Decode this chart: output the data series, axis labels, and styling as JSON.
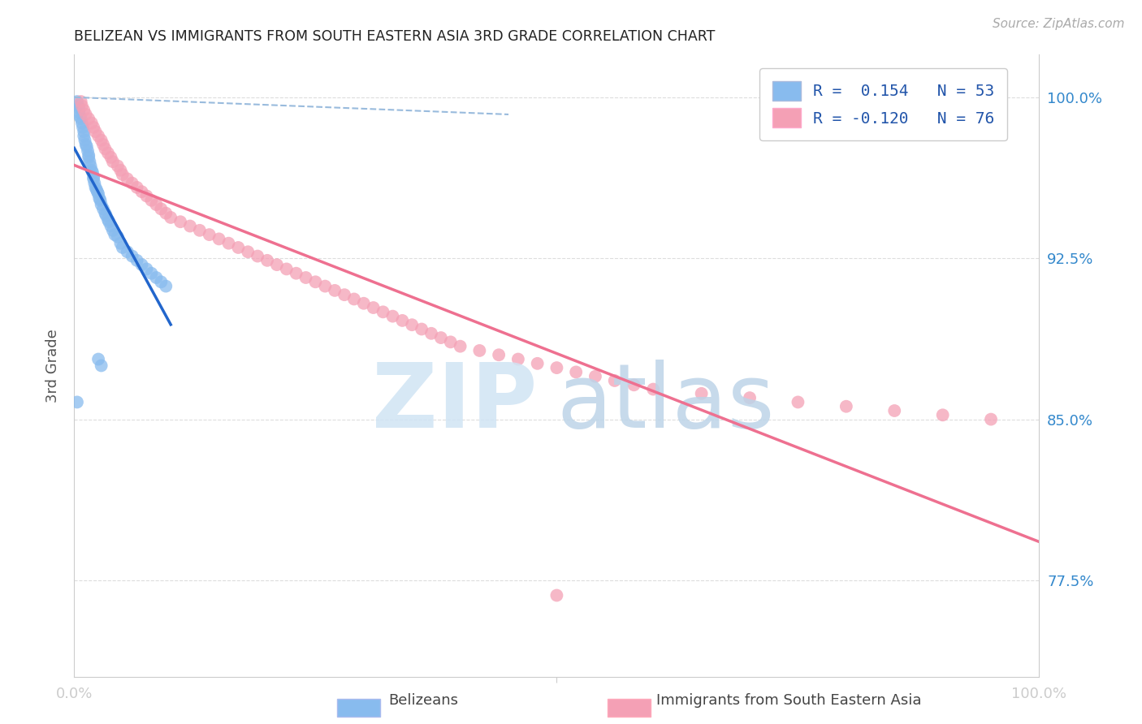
{
  "title": "BELIZEAN VS IMMIGRANTS FROM SOUTH EASTERN ASIA 3RD GRADE CORRELATION CHART",
  "source": "Source: ZipAtlas.com",
  "ylabel": "3rd Grade",
  "legend_blue_R": "0.154",
  "legend_blue_N": "53",
  "legend_pink_R": "-0.120",
  "legend_pink_N": "76",
  "blue_color": "#88BBEE",
  "pink_color": "#F4A0B5",
  "blue_line_color": "#2266CC",
  "pink_line_color": "#EE7090",
  "dashed_line_color": "#99BBDD",
  "blue_scatter_x": [
    0.003,
    0.004,
    0.005,
    0.005,
    0.006,
    0.007,
    0.008,
    0.009,
    0.01,
    0.01,
    0.011,
    0.012,
    0.013,
    0.014,
    0.015,
    0.015,
    0.016,
    0.017,
    0.018,
    0.019,
    0.02,
    0.02,
    0.021,
    0.022,
    0.023,
    0.024,
    0.025,
    0.026,
    0.027,
    0.028,
    0.03,
    0.032,
    0.033,
    0.035,
    0.036,
    0.038,
    0.04,
    0.042,
    0.045,
    0.048,
    0.05,
    0.055,
    0.06,
    0.065,
    0.07,
    0.075,
    0.08,
    0.085,
    0.09,
    0.095,
    0.025,
    0.028,
    0.003
  ],
  "blue_scatter_y": [
    0.998,
    0.996,
    0.995,
    0.993,
    0.991,
    0.99,
    0.988,
    0.986,
    0.984,
    0.982,
    0.98,
    0.978,
    0.977,
    0.975,
    0.973,
    0.972,
    0.97,
    0.968,
    0.966,
    0.965,
    0.963,
    0.962,
    0.96,
    0.958,
    0.957,
    0.956,
    0.955,
    0.953,
    0.952,
    0.95,
    0.948,
    0.946,
    0.945,
    0.943,
    0.942,
    0.94,
    0.938,
    0.936,
    0.935,
    0.932,
    0.93,
    0.928,
    0.926,
    0.924,
    0.922,
    0.92,
    0.918,
    0.916,
    0.914,
    0.912,
    0.878,
    0.875,
    0.858
  ],
  "pink_scatter_x": [
    0.007,
    0.008,
    0.01,
    0.012,
    0.015,
    0.018,
    0.02,
    0.022,
    0.025,
    0.028,
    0.03,
    0.032,
    0.035,
    0.038,
    0.04,
    0.045,
    0.048,
    0.05,
    0.055,
    0.06,
    0.065,
    0.07,
    0.075,
    0.08,
    0.085,
    0.09,
    0.095,
    0.1,
    0.11,
    0.12,
    0.13,
    0.14,
    0.15,
    0.16,
    0.17,
    0.18,
    0.19,
    0.2,
    0.21,
    0.22,
    0.23,
    0.24,
    0.25,
    0.26,
    0.27,
    0.28,
    0.29,
    0.3,
    0.31,
    0.32,
    0.33,
    0.34,
    0.35,
    0.36,
    0.37,
    0.38,
    0.39,
    0.4,
    0.42,
    0.44,
    0.46,
    0.48,
    0.5,
    0.52,
    0.54,
    0.56,
    0.58,
    0.6,
    0.65,
    0.7,
    0.75,
    0.8,
    0.85,
    0.9,
    0.95,
    0.5
  ],
  "pink_scatter_y": [
    0.998,
    0.996,
    0.994,
    0.992,
    0.99,
    0.988,
    0.986,
    0.984,
    0.982,
    0.98,
    0.978,
    0.976,
    0.974,
    0.972,
    0.97,
    0.968,
    0.966,
    0.964,
    0.962,
    0.96,
    0.958,
    0.956,
    0.954,
    0.952,
    0.95,
    0.948,
    0.946,
    0.944,
    0.942,
    0.94,
    0.938,
    0.936,
    0.934,
    0.932,
    0.93,
    0.928,
    0.926,
    0.924,
    0.922,
    0.92,
    0.918,
    0.916,
    0.914,
    0.912,
    0.91,
    0.908,
    0.906,
    0.904,
    0.902,
    0.9,
    0.898,
    0.896,
    0.894,
    0.892,
    0.89,
    0.888,
    0.886,
    0.884,
    0.882,
    0.88,
    0.878,
    0.876,
    0.874,
    0.872,
    0.87,
    0.868,
    0.866,
    0.864,
    0.862,
    0.86,
    0.858,
    0.856,
    0.854,
    0.852,
    0.85,
    0.768
  ],
  "xlim": [
    0.0,
    1.0
  ],
  "ylim": [
    0.73,
    1.02
  ],
  "yticks": [
    0.775,
    0.85,
    0.925,
    1.0
  ],
  "ytick_labels": [
    "77.5%",
    "85.0%",
    "92.5%",
    "100.0%"
  ],
  "background_color": "#ffffff",
  "grid_color": "#DDDDDD"
}
